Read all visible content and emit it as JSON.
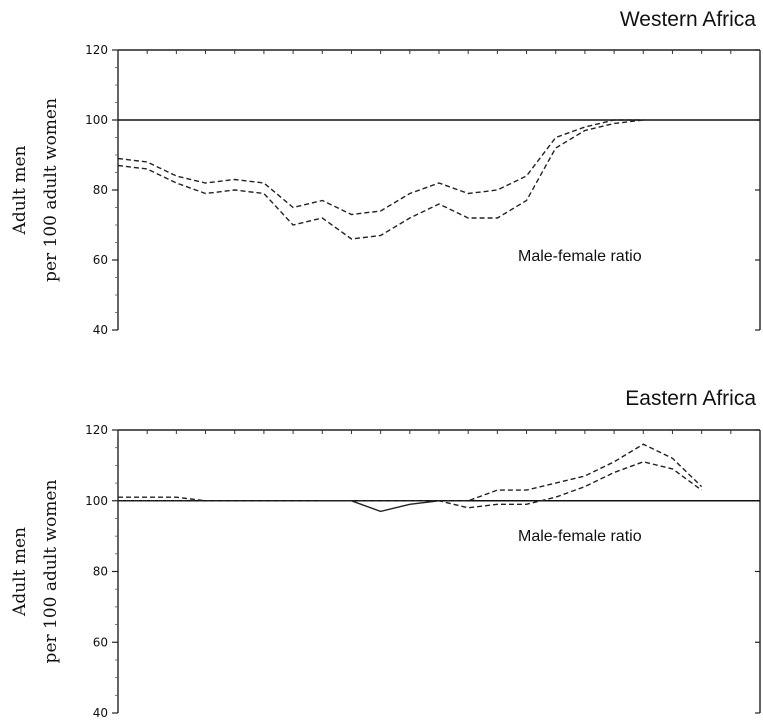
{
  "chart_data": [
    {
      "type": "line",
      "title": "Western Africa",
      "ylabel_line1": "Adult men",
      "ylabel_line2": "per 100 adult women",
      "annotation": "Male-female ratio",
      "ylim": [
        40,
        120
      ],
      "yticks": [
        40,
        60,
        80,
        100,
        120
      ],
      "xlim": [
        0,
        22
      ],
      "reference_line": 100,
      "grid": false,
      "series": [
        {
          "style": "dashed",
          "x": [
            0,
            1,
            2,
            3,
            4,
            5,
            6,
            7,
            8,
            9,
            10,
            11,
            12,
            13,
            14,
            15,
            16,
            17,
            18
          ],
          "values": [
            89,
            88,
            84,
            82,
            83,
            82,
            75,
            77,
            73,
            74,
            79,
            82,
            79,
            80,
            84,
            95,
            98,
            100,
            100
          ]
        },
        {
          "style": "dashed",
          "x": [
            0,
            1,
            2,
            3,
            4,
            5,
            6,
            7,
            8,
            9,
            10,
            11,
            12,
            13,
            14,
            15,
            16,
            17,
            18
          ],
          "values": [
            87,
            86,
            82,
            79,
            80,
            79,
            70,
            72,
            66,
            67,
            72,
            76,
            72,
            72,
            77,
            92,
            97,
            99,
            100
          ]
        }
      ]
    },
    {
      "type": "line",
      "title": "Eastern Africa",
      "ylabel_line1": "Adult men",
      "ylabel_line2": "per 100 adult women",
      "annotation": "Male-female ratio",
      "ylim": [
        40,
        120
      ],
      "yticks": [
        40,
        60,
        80,
        100,
        120
      ],
      "xlim": [
        0,
        22
      ],
      "reference_line": 100,
      "grid": false,
      "series": [
        {
          "style": "dashed",
          "x": [
            0,
            1,
            2,
            3,
            4,
            5,
            6,
            7,
            8,
            9,
            10,
            11,
            12,
            13,
            14,
            15,
            16,
            17,
            18,
            19,
            20
          ],
          "values": [
            101,
            101,
            101,
            100,
            100,
            100,
            100,
            100,
            100,
            100,
            100,
            100,
            100,
            103,
            103,
            105,
            107,
            111,
            116,
            112,
            104
          ]
        },
        {
          "style": "dashed",
          "x": [
            0,
            1,
            2,
            3,
            4,
            5,
            6,
            7,
            8,
            9,
            10,
            11,
            12,
            13,
            14,
            15,
            16,
            17,
            18,
            19,
            20
          ],
          "values": [
            100,
            100,
            100,
            100,
            100,
            100,
            100,
            100,
            100,
            100,
            100,
            100,
            98,
            99,
            99,
            101,
            104,
            108,
            111,
            109,
            103
          ]
        },
        {
          "style": "solid",
          "x": [
            7,
            8,
            9,
            10,
            11
          ],
          "values": [
            100,
            100,
            97,
            99,
            100
          ]
        }
      ]
    }
  ]
}
